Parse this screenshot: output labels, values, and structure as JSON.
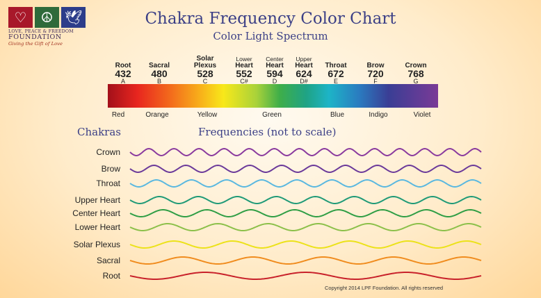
{
  "logo": {
    "line1": "LOVE, PEACE & FREEDOM",
    "line2": "FOUNDATION",
    "line3": "Giving the Gift of Love",
    "icons": [
      {
        "name": "heart-icon",
        "glyph": "♡",
        "color": "#a8182a"
      },
      {
        "name": "peace-icon",
        "glyph": "☮",
        "color": "#2f6a3a"
      },
      {
        "name": "dove-icon",
        "glyph": "🕊",
        "color": "#2c3d8a"
      }
    ]
  },
  "title": "Chakra Frequency Color Chart",
  "subtitle": "Color Light Spectrum",
  "chakras": [
    {
      "name_lines": [
        "Root"
      ],
      "freq": "432",
      "note": "A",
      "small": false
    },
    {
      "name_lines": [
        "Sacral"
      ],
      "freq": "480",
      "note": "B",
      "small": false
    },
    {
      "name_lines": [
        "Solar",
        "Plexus"
      ],
      "freq": "528",
      "note": "C",
      "small": false
    },
    {
      "name_lines": [
        "Lower",
        "Heart"
      ],
      "freq": "552",
      "note": "C#",
      "small": true
    },
    {
      "name_lines": [
        "Center",
        "Heart"
      ],
      "freq": "594",
      "note": "D",
      "small": true
    },
    {
      "name_lines": [
        "Upper",
        "Heart"
      ],
      "freq": "624",
      "note": "D#",
      "small": true
    },
    {
      "name_lines": [
        "Throat"
      ],
      "freq": "672",
      "note": "E",
      "small": false
    },
    {
      "name_lines": [
        "Brow"
      ],
      "freq": "720",
      "note": "F",
      "small": false
    },
    {
      "name_lines": [
        "Crown"
      ],
      "freq": "768",
      "note": "G",
      "small": false
    }
  ],
  "spectrum_colors": [
    "Red",
    "Orange",
    "Yellow",
    "Green",
    "Blue",
    "Indigo",
    "Violet"
  ],
  "section": {
    "left_heading": "Chakras",
    "right_heading": "Frequencies (not to scale)"
  },
  "waves": [
    {
      "name": "Crown",
      "color": "#8a3a9e",
      "cycles": 14
    },
    {
      "name": "Brow",
      "color": "#6b3a9a",
      "cycles": 11
    },
    {
      "name": "Throat",
      "color": "#5ab8e0",
      "cycles": 10
    },
    {
      "name": "Upper Heart",
      "color": "#1f9a77",
      "cycles": 9
    },
    {
      "name": "Center Heart",
      "color": "#2f9e45",
      "cycles": 8
    },
    {
      "name": "Lower Heart",
      "color": "#8cc04a",
      "cycles": 7
    },
    {
      "name": "Solar Plexus",
      "color": "#ece21a",
      "cycles": 6
    },
    {
      "name": "Sacral",
      "color": "#f08c1e",
      "cycles": 5
    },
    {
      "name": "Root",
      "color": "#c8212a",
      "cycles": 3.5
    }
  ],
  "copyright": "Copyright 2014 LPF Foundation. All rights reserved"
}
